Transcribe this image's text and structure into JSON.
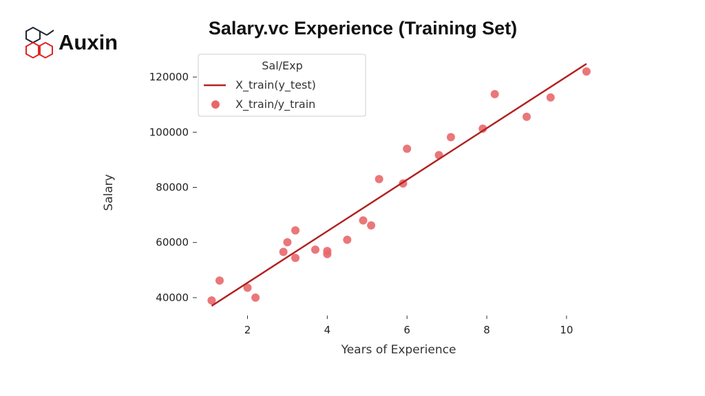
{
  "brand": {
    "name": "Auxin"
  },
  "chart_data": {
    "type": "scatter",
    "title": "Salary.vc Experience (Training Set)",
    "xlabel": "Years of Experience",
    "ylabel": "Salary",
    "xlim": [
      0.8,
      10.9
    ],
    "ylim": [
      34000,
      126500
    ],
    "xticks": [
      2,
      4,
      6,
      8,
      10
    ],
    "yticks": [
      40000,
      60000,
      80000,
      100000,
      120000
    ],
    "grid": false,
    "legend": {
      "title": "Sal/Exp",
      "placement": "top-left",
      "entries": [
        "X_train(y_test)",
        "X_train/y_train"
      ]
    },
    "series": [
      {
        "name": "X_train(y_test)",
        "kind": "line",
        "color": "#b22222",
        "x": [
          1.1,
          10.5
        ],
        "y": [
          37000,
          124800
        ]
      },
      {
        "name": "X_train/y_train",
        "kind": "scatter",
        "color": "#e8686a",
        "x": [
          1.1,
          1.3,
          2.0,
          2.2,
          2.9,
          3.0,
          3.2,
          3.2,
          3.7,
          4.0,
          4.0,
          4.5,
          4.9,
          5.1,
          5.3,
          5.9,
          6.0,
          6.8,
          7.1,
          7.9,
          8.2,
          9.0,
          9.6,
          10.5
        ],
        "y": [
          39000,
          46200,
          43600,
          40000,
          56600,
          60100,
          54400,
          64400,
          57400,
          55800,
          56900,
          61000,
          68000,
          66200,
          83000,
          81400,
          94000,
          91700,
          98200,
          101300,
          113800,
          105600,
          112600,
          122000
        ]
      }
    ]
  }
}
